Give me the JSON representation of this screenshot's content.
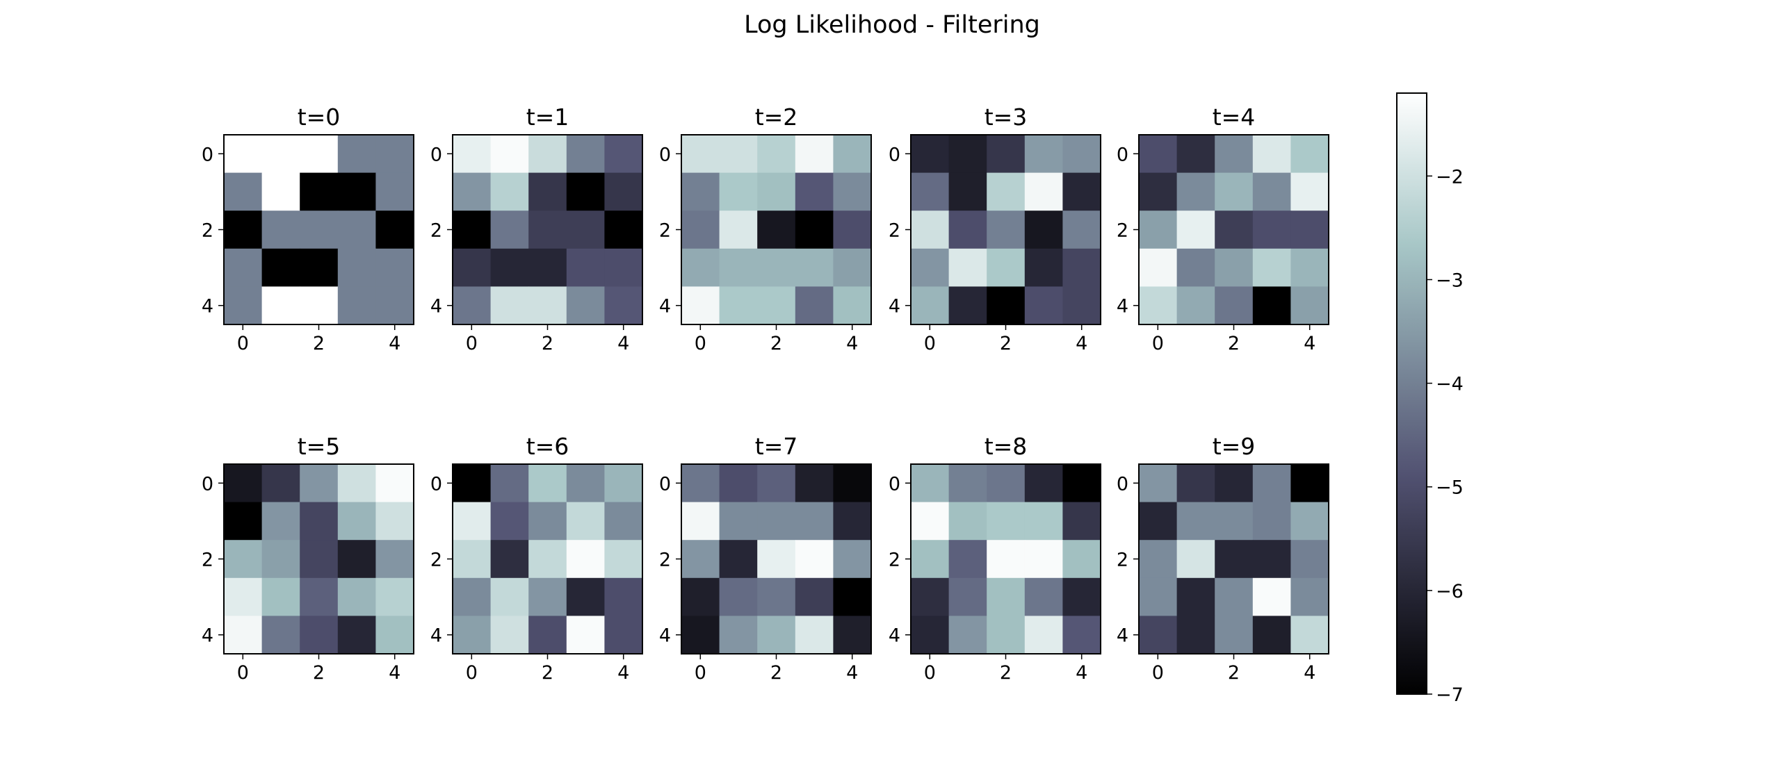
{
  "chart_data": {
    "type": "heatmap",
    "title": "Log Likelihood - Filtering",
    "colormap": "bone",
    "vmin": -7.0,
    "vmax": -1.2,
    "x_ticks": [
      "0",
      "2",
      "4"
    ],
    "y_ticks": [
      "0",
      "2",
      "4"
    ],
    "colorbar_ticks": [
      {
        "value": -2,
        "label": "−2"
      },
      {
        "value": -3,
        "label": "−3"
      },
      {
        "value": -4,
        "label": "−4"
      },
      {
        "value": -5,
        "label": "−5"
      },
      {
        "value": -6,
        "label": "−6"
      },
      {
        "value": -7,
        "label": "−7"
      }
    ],
    "panels": [
      {
        "title": "t=0",
        "values": [
          [
            -1.2,
            -1.2,
            -1.2,
            -4.0,
            -4.0
          ],
          [
            -4.0,
            -1.2,
            -7.0,
            -7.0,
            -4.0
          ],
          [
            -7.0,
            -4.0,
            -4.0,
            -4.0,
            -7.0
          ],
          [
            -4.0,
            -7.0,
            -7.0,
            -4.0,
            -4.0
          ],
          [
            -4.0,
            -1.2,
            -1.2,
            -4.0,
            -4.0
          ]
        ]
      },
      {
        "title": "t=1",
        "values": [
          [
            -1.6,
            -1.3,
            -2.1,
            -4.0,
            -4.8
          ],
          [
            -3.6,
            -2.4,
            -5.6,
            -7.0,
            -5.6
          ],
          [
            -7.0,
            -4.2,
            -5.4,
            -5.4,
            -7.0
          ],
          [
            -5.6,
            -6.0,
            -6.0,
            -5.0,
            -5.0
          ],
          [
            -4.2,
            -2.0,
            -2.0,
            -3.8,
            -4.8
          ]
        ]
      },
      {
        "title": "t=2",
        "values": [
          [
            -2.0,
            -2.0,
            -2.4,
            -1.4,
            -3.0
          ],
          [
            -4.0,
            -2.6,
            -2.8,
            -4.8,
            -3.8
          ],
          [
            -4.2,
            -1.8,
            -6.4,
            -7.0,
            -5.0
          ],
          [
            -3.2,
            -3.0,
            -3.0,
            -3.0,
            -3.4
          ],
          [
            -1.4,
            -2.6,
            -2.6,
            -4.4,
            -2.8
          ]
        ]
      },
      {
        "title": "t=3",
        "values": [
          [
            -6.0,
            -6.2,
            -5.6,
            -3.5,
            -3.7
          ],
          [
            -4.4,
            -6.2,
            -2.4,
            -1.4,
            -6.0
          ],
          [
            -2.0,
            -5.0,
            -4.0,
            -6.4,
            -4.0
          ],
          [
            -3.6,
            -1.8,
            -2.6,
            -6.0,
            -5.2
          ],
          [
            -3.0,
            -6.0,
            -7.0,
            -5.0,
            -5.2
          ]
        ]
      },
      {
        "title": "t=4",
        "values": [
          [
            -5.0,
            -5.8,
            -3.8,
            -1.8,
            -2.6
          ],
          [
            -5.8,
            -3.8,
            -3.0,
            -3.8,
            -1.6
          ],
          [
            -3.4,
            -1.6,
            -5.4,
            -5.0,
            -5.0
          ],
          [
            -1.4,
            -4.0,
            -3.4,
            -2.4,
            -3.0
          ],
          [
            -2.2,
            -3.2,
            -4.2,
            -7.0,
            -3.4
          ]
        ]
      },
      {
        "title": "t=5",
        "values": [
          [
            -6.4,
            -5.6,
            -3.6,
            -2.0,
            -1.3
          ],
          [
            -7.0,
            -3.6,
            -5.2,
            -3.0,
            -2.0
          ],
          [
            -3.0,
            -3.4,
            -5.2,
            -6.2,
            -3.6
          ],
          [
            -1.7,
            -2.8,
            -4.6,
            -3.0,
            -2.4
          ],
          [
            -1.4,
            -4.2,
            -5.0,
            -6.0,
            -2.8
          ]
        ]
      },
      {
        "title": "t=6",
        "values": [
          [
            -7.0,
            -4.4,
            -2.6,
            -3.8,
            -3.0
          ],
          [
            -1.7,
            -4.8,
            -3.8,
            -2.2,
            -3.8
          ],
          [
            -2.2,
            -5.8,
            -2.2,
            -1.3,
            -2.2
          ],
          [
            -3.8,
            -2.2,
            -3.6,
            -6.0,
            -5.0
          ],
          [
            -3.4,
            -2.0,
            -5.0,
            -1.3,
            -5.0
          ]
        ]
      },
      {
        "title": "t=7",
        "values": [
          [
            -4.2,
            -5.0,
            -4.6,
            -6.2,
            -6.8
          ],
          [
            -1.4,
            -3.8,
            -3.8,
            -3.8,
            -6.0
          ],
          [
            -3.6,
            -6.0,
            -1.6,
            -1.3,
            -3.6
          ],
          [
            -6.2,
            -4.4,
            -4.2,
            -5.4,
            -7.0
          ],
          [
            -6.4,
            -3.6,
            -3.0,
            -1.8,
            -6.2
          ]
        ]
      },
      {
        "title": "t=8",
        "values": [
          [
            -3.0,
            -4.0,
            -4.2,
            -6.0,
            -7.0
          ],
          [
            -1.3,
            -2.8,
            -2.6,
            -2.6,
            -5.6
          ],
          [
            -2.8,
            -4.6,
            -1.3,
            -1.3,
            -2.8
          ],
          [
            -5.8,
            -4.4,
            -2.8,
            -4.2,
            -6.0
          ],
          [
            -6.0,
            -3.6,
            -2.8,
            -1.7,
            -4.8
          ]
        ]
      },
      {
        "title": "t=9",
        "values": [
          [
            -3.6,
            -5.6,
            -6.0,
            -4.0,
            -7.0
          ],
          [
            -6.0,
            -3.8,
            -3.8,
            -4.0,
            -3.2
          ],
          [
            -3.8,
            -1.9,
            -6.0,
            -6.0,
            -4.0
          ],
          [
            -3.8,
            -6.0,
            -3.8,
            -1.3,
            -3.8
          ],
          [
            -5.2,
            -6.0,
            -3.8,
            -6.2,
            -2.2
          ]
        ]
      }
    ]
  }
}
